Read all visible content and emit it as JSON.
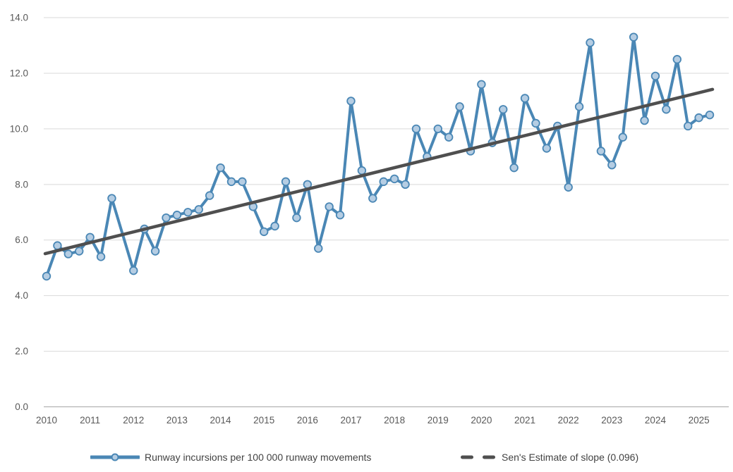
{
  "chart_data": {
    "type": "line",
    "title": "",
    "grid": "horizontal",
    "legend_position": "bottom",
    "ylim": [
      0,
      14
    ],
    "y_ticks": [
      0,
      2,
      4,
      6,
      8,
      10,
      12,
      14
    ],
    "y_tick_labels": [
      "0.0",
      "2.0",
      "4.0",
      "6.0",
      "8.0",
      "10.0",
      "12.0",
      "14.0"
    ],
    "x_tick_labels": [
      "2010",
      "2011",
      "2012",
      "2013",
      "2014",
      "2015",
      "2016",
      "2017",
      "2018",
      "2019",
      "2020",
      "2021",
      "2022",
      "2023",
      "2024",
      "2025"
    ],
    "x_unit": "quarter",
    "x_start": "2010-Q1",
    "x_end": "2025-Q2",
    "series": [
      {
        "name": "Runway incursions per 100 000 runway movements",
        "type": "line-markers",
        "values": [
          4.7,
          5.8,
          5.5,
          5.6,
          6.1,
          5.4,
          7.5,
          null,
          4.9,
          6.4,
          5.6,
          6.8,
          6.9,
          7.0,
          7.1,
          7.6,
          8.6,
          8.1,
          8.1,
          7.2,
          6.3,
          6.5,
          8.1,
          6.8,
          8.0,
          5.7,
          7.2,
          6.9,
          11.0,
          8.5,
          7.5,
          8.1,
          8.2,
          8.0,
          10.0,
          9.0,
          10.0,
          9.7,
          10.8,
          9.2,
          11.6,
          9.5,
          10.7,
          8.6,
          11.1,
          10.2,
          9.3,
          10.1,
          7.9,
          10.8,
          13.1,
          9.2,
          8.7,
          9.7,
          13.3,
          10.3,
          11.9,
          10.7,
          12.5,
          10.1,
          10.4,
          10.5
        ]
      },
      {
        "name": "Sen's Estimate of slope (0.096)",
        "type": "trend",
        "slope_per_quarter": 0.096,
        "start_value": 5.51,
        "end_value": 11.42
      }
    ],
    "colors": {
      "series_line": "#4a87b5",
      "marker_fill": "#b5cde3",
      "trend": "#4f4f4f",
      "gridline": "#d9d9d9",
      "axis_line": "#a6a6a6",
      "tick_label": "#595959",
      "legend_text": "#424242",
      "background": "#ffffff"
    }
  }
}
